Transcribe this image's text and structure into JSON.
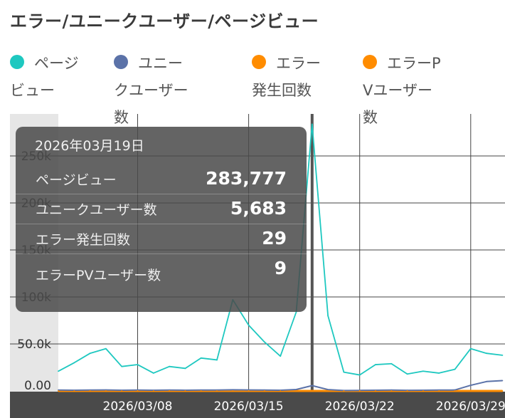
{
  "title": "エラー/ユニークユーザー/ページビュー",
  "legend": [
    {
      "label": "ページビュー",
      "color": "#1ec8c0"
    },
    {
      "label": "ユニークユーザー数",
      "color": "#5b72a8"
    },
    {
      "label": "エラー発生回数",
      "color": "#ff8c00"
    },
    {
      "label": "エラーPVユーザー数",
      "color": "#ff8c00"
    }
  ],
  "chart_data": {
    "type": "line",
    "x_dates": [
      "2026/03/03",
      "2026/03/04",
      "2026/03/05",
      "2026/03/06",
      "2026/03/07",
      "2026/03/08",
      "2026/03/09",
      "2026/03/10",
      "2026/03/11",
      "2026/03/12",
      "2026/03/13",
      "2026/03/14",
      "2026/03/15",
      "2026/03/16",
      "2026/03/17",
      "2026/03/18",
      "2026/03/19",
      "2026/03/20",
      "2026/03/21",
      "2026/03/22",
      "2026/03/23",
      "2026/03/24",
      "2026/03/25",
      "2026/03/26",
      "2026/03/27",
      "2026/03/28",
      "2026/03/29",
      "2026/03/30",
      "2026/03/31"
    ],
    "x_tick_labels": [
      "2026/03/08",
      "2026/03/15",
      "2026/03/22",
      "2026/03/29"
    ],
    "y_tick_labels": [
      "0.00",
      "50.0k",
      "100k",
      "150k",
      "200k",
      "250k"
    ],
    "ylim": [
      0,
      300000
    ],
    "grid": true,
    "series": [
      {
        "name": "ページビュー",
        "color": "#1ec8c0",
        "values": [
          21000,
          30000,
          40000,
          45000,
          26000,
          28000,
          19000,
          26000,
          24000,
          35000,
          33000,
          97000,
          70000,
          52000,
          37000,
          84000,
          283777,
          80000,
          20000,
          17000,
          28000,
          29000,
          18000,
          21000,
          19000,
          23000,
          45000,
          40000,
          38000
        ]
      },
      {
        "name": "ユニークユーザー数",
        "color": "#5b72a8",
        "values": [
          900,
          800,
          900,
          1000,
          800,
          900,
          800,
          900,
          800,
          900,
          900,
          1200,
          1000,
          900,
          800,
          1500,
          5683,
          1400,
          500,
          600,
          800,
          900,
          700,
          800,
          900,
          1000,
          6000,
          10000,
          11000
        ]
      },
      {
        "name": "エラー発生回数",
        "color": "#ff8c00",
        "values": [
          3,
          2,
          2,
          3,
          2,
          2,
          2,
          3,
          2,
          3,
          2,
          5,
          4,
          3,
          2,
          6,
          29,
          5,
          2,
          2,
          3,
          3,
          2,
          2,
          2,
          3,
          4,
          4,
          3
        ]
      },
      {
        "name": "エラーPVユーザー数",
        "color": "#ff8c00",
        "values": [
          1,
          1,
          1,
          1,
          1,
          1,
          1,
          1,
          1,
          1,
          1,
          2,
          2,
          1,
          1,
          2,
          9,
          2,
          1,
          1,
          1,
          1,
          1,
          1,
          1,
          1,
          2,
          2,
          1
        ]
      }
    ],
    "highlight_index": 16
  },
  "tooltip": {
    "date": "2026年03月19日",
    "rows": [
      {
        "label": "ページビュー",
        "value": "283,777"
      },
      {
        "label": "ユニークユーザー数",
        "value": "5,683"
      },
      {
        "label": "エラー発生回数",
        "value": "29"
      },
      {
        "label": "エラーPVユーザー数",
        "value": "9"
      }
    ]
  }
}
